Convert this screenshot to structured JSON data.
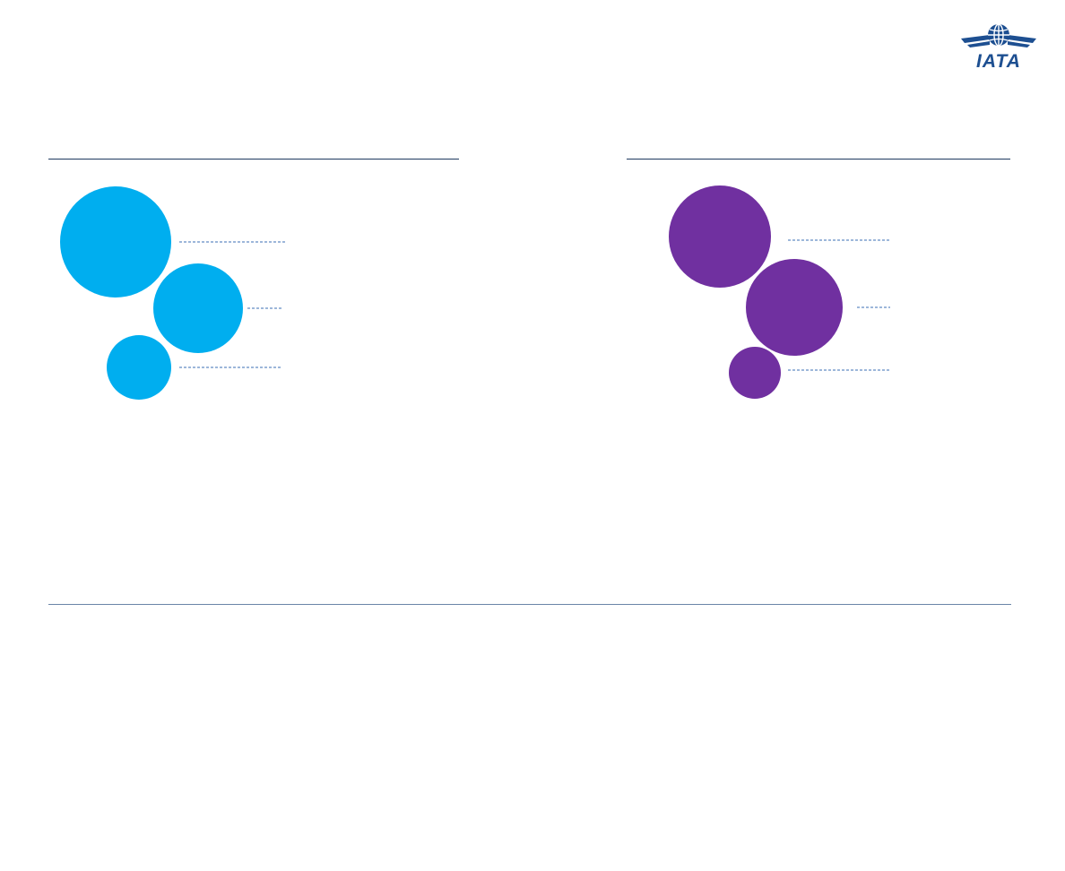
{
  "header": {
    "logo_text": "IATA"
  },
  "colors": {
    "left_bubbles": "#00aeef",
    "right_bubbles": "#7030a0",
    "rule": "#1f3a5f",
    "leader": "#3b6fb6"
  },
  "panels": [
    {
      "name": "left-panel",
      "bubble_count": 3
    },
    {
      "name": "right-panel",
      "bubble_count": 3
    }
  ]
}
